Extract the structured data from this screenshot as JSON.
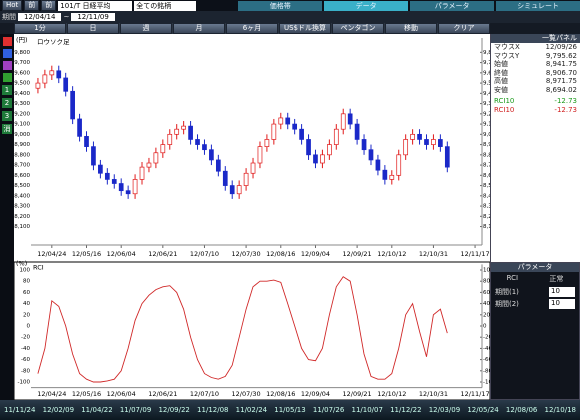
{
  "ui": {
    "toolbar": {
      "buttons": [
        "Hot",
        "前",
        "前"
      ],
      "code": "101/T 日経平均",
      "filter": "全ての銘柄",
      "tabs": [
        "価格帯",
        "データ",
        "パラメータ",
        "シミュレート"
      ]
    },
    "period": {
      "label": "期間",
      "from": "12/04/14",
      "sep": "~",
      "to": "12/11/09"
    },
    "buttons": [
      "1分",
      "日",
      "週",
      "月",
      "6ヶ月",
      "US$ドル換算",
      "ペンタゴン",
      "移動",
      "クリア"
    ],
    "left_tools": [
      "1",
      "2",
      "3",
      "消"
    ],
    "side_panel": {
      "title": "一覧パネル",
      "rows": [
        [
          "マウスX",
          "12/09/26"
        ],
        [
          "マウスY",
          "9,795.62"
        ],
        [
          "始値",
          "8,941.75"
        ],
        [
          "終値",
          "8,906.70"
        ],
        [
          "高値",
          "8,971.75"
        ],
        [
          "安値",
          "8,694.02"
        ],
        [
          "RCI10",
          "-12.73"
        ],
        [
          "RCI10",
          "-12.73"
        ]
      ]
    },
    "param_panel": {
      "title": "パラメータ",
      "name": "RCI",
      "mode": "正常",
      "rows": [
        [
          "期間(1)",
          "10"
        ],
        [
          "期間(2)",
          "10"
        ]
      ]
    },
    "scroll_dates": [
      "11/11/24",
      "12/02/09",
      "11/04/22",
      "11/07/09",
      "12/09/22",
      "11/12/08",
      "11/02/24",
      "11/05/13",
      "11/07/26",
      "11/10/07",
      "11/12/22",
      "12/03/09",
      "12/05/24",
      "12/08/06",
      "12/10/18"
    ]
  },
  "chart_data": [
    {
      "type": "candlestick",
      "title": "ロウソク足",
      "y_unit": "(円)",
      "up_color": "#e01818",
      "down_color": "#1a28c8",
      "open": [
        9450,
        9500,
        9580,
        9620,
        9550,
        9420,
        9150,
        8980,
        8880,
        8700,
        8620,
        8560,
        8520,
        8450,
        8420,
        8560,
        8680,
        8720,
        8820,
        8900,
        9000,
        9050,
        9080,
        8950,
        8900,
        8850,
        8750,
        8640,
        8500,
        8420,
        8500,
        8620,
        8720,
        8880,
        8950,
        9100,
        9160,
        9100,
        9050,
        8950,
        8800,
        8720,
        8800,
        8900,
        9050,
        9200,
        9100,
        8950,
        8850,
        8750,
        8650,
        8560,
        8600,
        8800,
        8950,
        9000,
        8950,
        8900,
        8950,
        8880
      ],
      "close": [
        9500,
        9580,
        9620,
        9550,
        9420,
        9150,
        8980,
        8880,
        8700,
        8620,
        8560,
        8520,
        8450,
        8420,
        8560,
        8680,
        8720,
        8820,
        8900,
        9000,
        9050,
        9080,
        8950,
        8900,
        8850,
        8750,
        8640,
        8500,
        8420,
        8500,
        8620,
        8720,
        8880,
        8950,
        9100,
        9160,
        9100,
        9050,
        8950,
        8800,
        8720,
        8800,
        8900,
        9050,
        9200,
        9100,
        8950,
        8850,
        8750,
        8650,
        8560,
        8600,
        8800,
        8950,
        9000,
        8950,
        8900,
        8950,
        8880,
        8680
      ],
      "high": [
        9550,
        9630,
        9670,
        9670,
        9600,
        9470,
        9200,
        9030,
        8930,
        8750,
        8670,
        8610,
        8570,
        8500,
        8610,
        8730,
        8770,
        8870,
        8950,
        9050,
        9100,
        9130,
        9130,
        9000,
        8950,
        8900,
        8800,
        8690,
        8550,
        8550,
        8670,
        8770,
        8930,
        9000,
        9150,
        9210,
        9210,
        9150,
        9100,
        9000,
        8850,
        8850,
        8950,
        9100,
        9250,
        9250,
        9150,
        9000,
        8900,
        8800,
        8700,
        8650,
        8850,
        9000,
        9050,
        9050,
        9000,
        9000,
        9000,
        8930
      ],
      "low": [
        9400,
        9450,
        9530,
        9500,
        9370,
        9100,
        8930,
        8830,
        8650,
        8570,
        8510,
        8470,
        8400,
        8370,
        8370,
        8510,
        8630,
        8670,
        8770,
        8850,
        8950,
        9000,
        8900,
        8850,
        8800,
        8700,
        8590,
        8450,
        8370,
        8370,
        8450,
        8570,
        8670,
        8830,
        8900,
        9050,
        9050,
        9000,
        8900,
        8750,
        8670,
        8670,
        8750,
        8850,
        9000,
        9050,
        8900,
        8800,
        8700,
        8600,
        8510,
        8510,
        8550,
        8750,
        8900,
        8900,
        8850,
        8850,
        8830,
        8630
      ],
      "xlim": [
        -1,
        64
      ],
      "xticks": [
        {
          "value": 2,
          "label": "12/04/24"
        },
        {
          "value": 7,
          "label": "12/05/16"
        },
        {
          "value": 12,
          "label": "12/06/04"
        },
        {
          "value": 18,
          "label": "12/06/21"
        },
        {
          "value": 24,
          "label": "12/07/10"
        },
        {
          "value": 30,
          "label": "12/07/30"
        },
        {
          "value": 35,
          "label": "12/08/16"
        },
        {
          "value": 40,
          "label": "12/09/04"
        },
        {
          "value": 46,
          "label": "12/09/21"
        },
        {
          "value": 51,
          "label": "12/10/12"
        },
        {
          "value": 57,
          "label": "12/10/31"
        },
        {
          "value": 63,
          "label": "12/11/17"
        }
      ],
      "ylim": [
        7920,
        9940
      ],
      "yticks": [
        {
          "value": 9800,
          "label": "9,800"
        },
        {
          "value": 9700,
          "label": "9,700"
        },
        {
          "value": 9600,
          "label": "9,600"
        },
        {
          "value": 9500,
          "label": "9,500"
        },
        {
          "value": 9400,
          "label": "9,400"
        },
        {
          "value": 9300,
          "label": "9,300"
        },
        {
          "value": 9200,
          "label": "9,200"
        },
        {
          "value": 9100,
          "label": "9,100"
        },
        {
          "value": 9000,
          "label": "9,000"
        },
        {
          "value": 8900,
          "label": "8,900"
        },
        {
          "value": 8800,
          "label": "8,800"
        },
        {
          "value": 8700,
          "label": "8,700"
        },
        {
          "value": 8600,
          "label": "8,600"
        },
        {
          "value": 8500,
          "label": "8,500"
        },
        {
          "value": 8400,
          "label": "8,400"
        },
        {
          "value": 8300,
          "label": "8,300"
        },
        {
          "value": 8200,
          "label": "8,200"
        },
        {
          "value": 8100,
          "label": "8,100"
        }
      ]
    },
    {
      "type": "line",
      "title": "RCI",
      "y_unit": "(%)",
      "color": "#d02828",
      "values": [
        -85,
        -40,
        45,
        35,
        0,
        -50,
        -85,
        -95,
        -100,
        -100,
        -98,
        -95,
        -80,
        -40,
        10,
        40,
        55,
        65,
        70,
        72,
        60,
        30,
        -20,
        -60,
        -85,
        -92,
        -95,
        -90,
        -70,
        -20,
        30,
        70,
        80,
        80,
        82,
        78,
        40,
        0,
        -40,
        -60,
        -62,
        -40,
        20,
        70,
        88,
        80,
        20,
        -50,
        -90,
        -95,
        -95,
        -85,
        -40,
        20,
        40,
        -10,
        -55,
        20,
        30,
        -12.73
      ],
      "xlim": [
        -1,
        64
      ],
      "ylim": [
        -110,
        110
      ],
      "yticks": [
        100,
        80,
        60,
        40,
        20,
        0,
        -20,
        -40,
        -60,
        -80,
        -100
      ]
    }
  ]
}
